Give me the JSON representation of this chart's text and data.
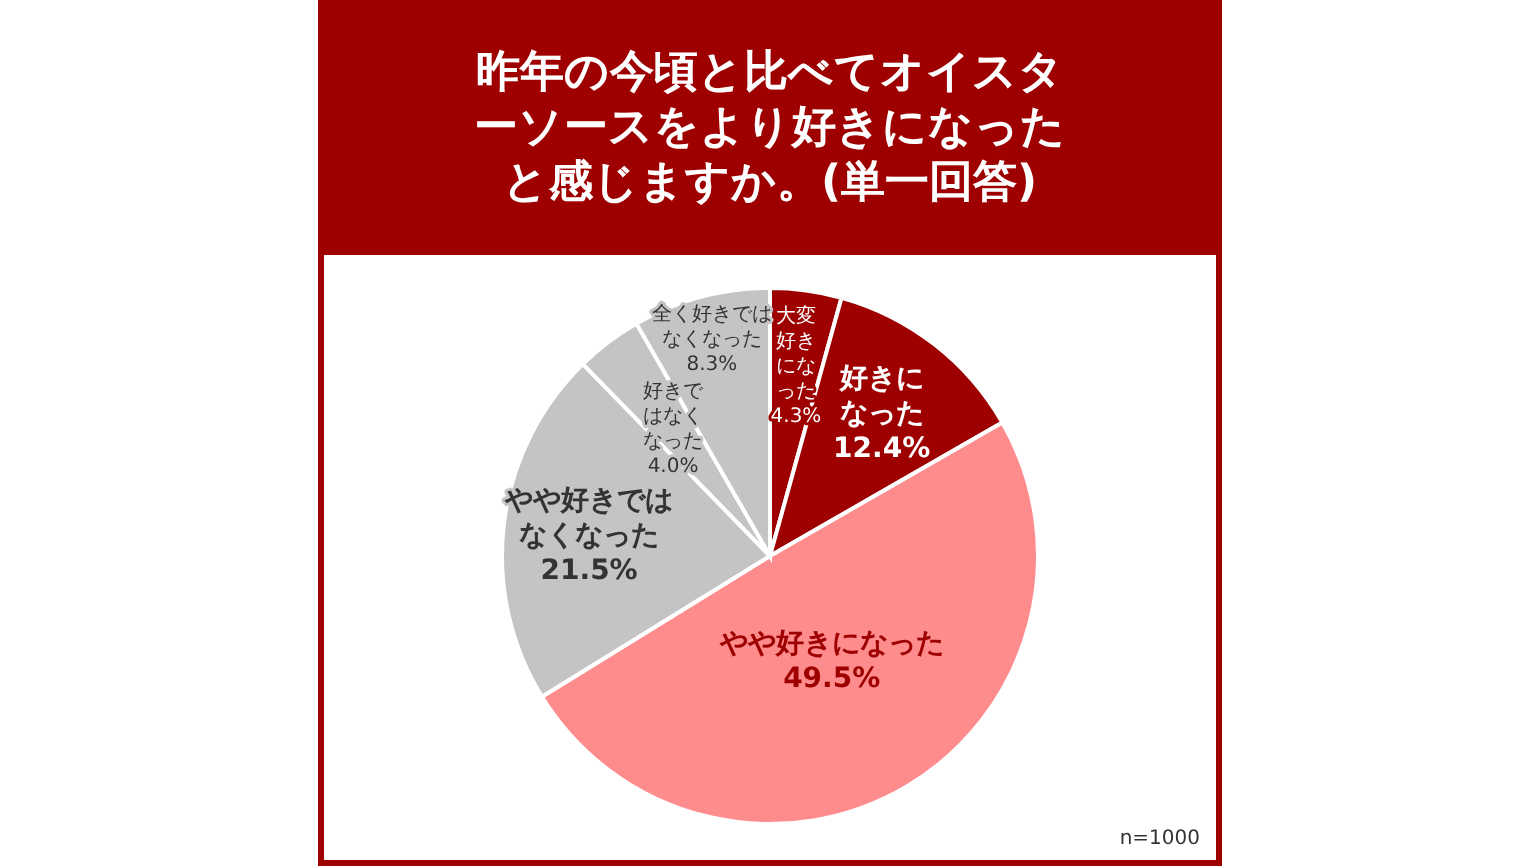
{
  "chart_data": {
    "type": "pie",
    "title": "昨年の今頃と比べてオイスターソースをより好きになったと感じますか。(単一回答)",
    "categories": [
      "大変好きになった",
      "好きになった",
      "やや好きになった",
      "やや好きではなくなった",
      "好きではなくなった",
      "全く好きではなくなった"
    ],
    "values": [
      4.3,
      12.4,
      49.5,
      21.5,
      4.0,
      8.3
    ],
    "value_labels": [
      "4.3%",
      "12.4%",
      "49.5%",
      "21.5%",
      "4.0%",
      "8.3%"
    ],
    "colors": [
      "#9e0000",
      "#9e0000",
      "#ff8c8c",
      "#c4c4c4",
      "#c4c4c4",
      "#c4c4c4"
    ],
    "annotations": [
      "n=1000"
    ]
  }
}
